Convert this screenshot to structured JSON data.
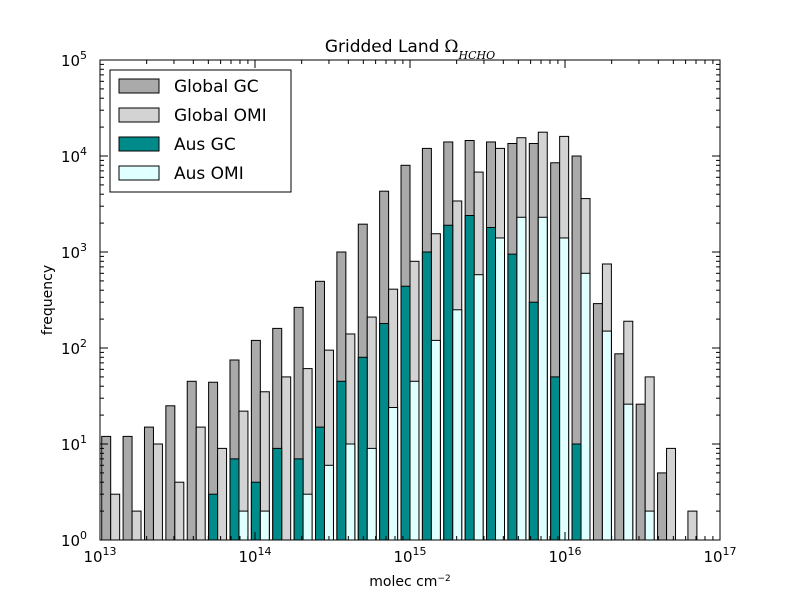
{
  "chart_data": {
    "type": "bar",
    "title": "Gridded Land",
    "title_symbol": "Ω",
    "title_subscript": "HCHO",
    "xlabel": "molec cm",
    "xlabel_exponent": "−2",
    "ylabel": "frequency",
    "xscale": "log",
    "yscale": "log",
    "xlim": [
      10000000000000.0,
      1e+17
    ],
    "ylim": [
      1,
      100000
    ],
    "x_ticks": [
      {
        "base": "10",
        "exp": "13",
        "value": 10000000000000.0
      },
      {
        "base": "10",
        "exp": "14",
        "value": 100000000000000.0
      },
      {
        "base": "10",
        "exp": "15",
        "value": 1000000000000000.0
      },
      {
        "base": "10",
        "exp": "16",
        "value": 1e+16
      },
      {
        "base": "10",
        "exp": "17",
        "value": 1e+17
      }
    ],
    "y_ticks": [
      {
        "base": "10",
        "exp": "0",
        "value": 1
      },
      {
        "base": "10",
        "exp": "1",
        "value": 10
      },
      {
        "base": "10",
        "exp": "2",
        "value": 100
      },
      {
        "base": "10",
        "exp": "3",
        "value": 1000
      },
      {
        "base": "10",
        "exp": "4",
        "value": 10000
      },
      {
        "base": "10",
        "exp": "5",
        "value": 100000
      }
    ],
    "legend_position": "top-left",
    "bins": 29,
    "bin_log_min": 13.0,
    "bin_log_max": 17.0,
    "series": [
      {
        "name": "Global GC",
        "color": "#aaaaaa",
        "group": "global",
        "slot": 0,
        "values": [
          12,
          12,
          15,
          25,
          45,
          44,
          75,
          120,
          160,
          265,
          495,
          1000,
          1950,
          4300,
          8000,
          12000,
          14000,
          14500,
          14000,
          13500,
          13500,
          8500,
          10000,
          290,
          87,
          26,
          5,
          null,
          null
        ]
      },
      {
        "name": "Global OMI",
        "color": "#d3d3d3",
        "group": "global",
        "slot": 1,
        "values": [
          3,
          2,
          10,
          4,
          15,
          9,
          22,
          35,
          50,
          61,
          95,
          140,
          210,
          410,
          800,
          1550,
          3400,
          6800,
          12000,
          15500,
          17700,
          16000,
          3600,
          750,
          190,
          50,
          9,
          2,
          null
        ]
      },
      {
        "name": "Aus GC",
        "color": "#008b8b",
        "group": "aus",
        "slot": 0,
        "values": [
          null,
          null,
          null,
          null,
          null,
          3,
          7,
          4,
          9,
          7,
          15,
          45,
          80,
          180,
          440,
          1000,
          1900,
          2400,
          1800,
          950,
          300,
          50,
          10,
          null,
          null,
          null,
          null,
          null,
          null
        ]
      },
      {
        "name": "Aus OMI",
        "color": "#e0ffff",
        "group": "aus",
        "slot": 1,
        "values": [
          1,
          null,
          null,
          null,
          null,
          null,
          2,
          2,
          null,
          3,
          6,
          10,
          9,
          24,
          45,
          120,
          250,
          580,
          1400,
          2300,
          2300,
          1400,
          600,
          150,
          26,
          2,
          null,
          null,
          null
        ]
      }
    ]
  }
}
